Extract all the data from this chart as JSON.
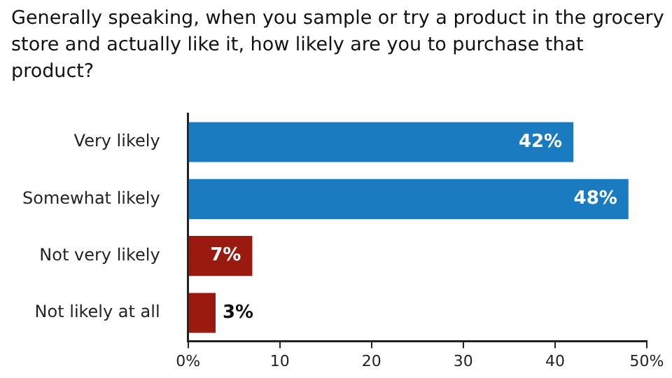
{
  "chart_data": {
    "type": "bar",
    "orientation": "horizontal",
    "title": "Generally speaking, when you sample or try a product in the grocery store and actually like it, how likely are you to purchase that product?",
    "categories": [
      "Very likely",
      "Somewhat likely",
      "Not very likely",
      "Not likely at all"
    ],
    "values": [
      42,
      48,
      7,
      3
    ],
    "colors": [
      "#1b7bc0",
      "#1b7bc0",
      "#9a1a10",
      "#9a1a10"
    ],
    "value_labels": [
      "42%",
      "48%",
      "7%",
      "3%"
    ],
    "xlim": [
      0,
      50
    ],
    "xticks": [
      {
        "value": 0,
        "label": "0%"
      },
      10,
      20,
      30,
      40,
      {
        "value": 50,
        "label": "50%"
      }
    ],
    "grid": false,
    "legend": false
  }
}
